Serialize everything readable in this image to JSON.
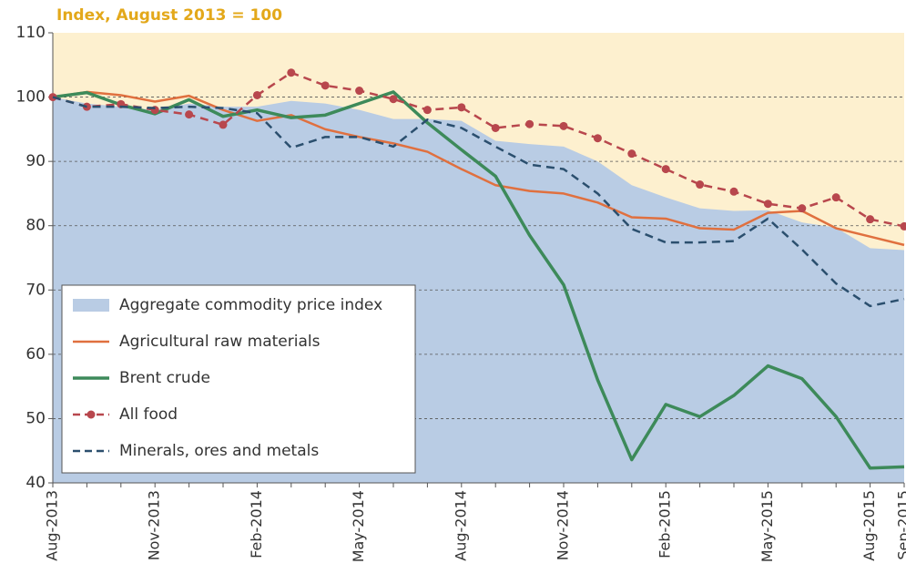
{
  "chart_data": {
    "type": "line",
    "title": "Index, August 2013 = 100",
    "categories": [
      "Aug-2013",
      null,
      null,
      "Nov-2013",
      null,
      null,
      "Feb-2014",
      null,
      null,
      "May-2014",
      null,
      null,
      "Aug-2014",
      null,
      null,
      "Nov-2014",
      null,
      null,
      "Feb-2015",
      null,
      null,
      "May-2015",
      null,
      null,
      "Aug-2015",
      "Sep-2015"
    ],
    "series": [
      {
        "name": "Aggregate commodity price index",
        "color": "#b9cce4",
        "kind": "area",
        "values": [
          100,
          99,
          98.5,
          98,
          99,
          98.5,
          98.5,
          99.4,
          99,
          98,
          96.6,
          96.6,
          96.3,
          93.2,
          92.7,
          92.3,
          90,
          86.3,
          84.4,
          82.7,
          82.3,
          82.4,
          80.5,
          79.7,
          76.5,
          76.2
        ]
      },
      {
        "name": "Agricultural raw materials",
        "color": "#e0703f",
        "kind": "line",
        "values": [
          100,
          100.8,
          100.3,
          99.3,
          100.2,
          98,
          96.3,
          97.2,
          95,
          93.8,
          92.8,
          91.5,
          88.8,
          86.3,
          85.4,
          85,
          83.6,
          81.3,
          81.1,
          79.6,
          79.4,
          82,
          82.3,
          79.6,
          78.3,
          77
        ]
      },
      {
        "name": "Brent crude",
        "color": "#3d8a5a",
        "kind": "line",
        "values": [
          100,
          100.7,
          98.8,
          97.4,
          99.6,
          97,
          98,
          96.8,
          97.2,
          99,
          100.8,
          96,
          91.8,
          87.7,
          78.5,
          70.8,
          56,
          43.6,
          52.2,
          50.3,
          53.6,
          58.2,
          56.2,
          50.3,
          42.3,
          42.5
        ]
      },
      {
        "name": "All food",
        "color": "#b8474d",
        "kind": "line",
        "dashed": true,
        "markers": true,
        "values": [
          100,
          98.5,
          98.9,
          98,
          97.3,
          95.7,
          100.3,
          103.8,
          101.8,
          101,
          99.7,
          98,
          98.4,
          95.2,
          95.8,
          95.5,
          93.6,
          91.2,
          88.8,
          86.4,
          85.3,
          83.4,
          82.7,
          84.4,
          81,
          79.9
        ]
      },
      {
        "name": "Minerals, ores and metals",
        "color": "#2b4f6e",
        "kind": "line",
        "dashed": true,
        "values": [
          100,
          98.5,
          98.5,
          98.3,
          98.5,
          98.3,
          97.5,
          92.1,
          93.8,
          93.8,
          92.3,
          96.5,
          95.2,
          92.3,
          89.5,
          88.8,
          85,
          79.5,
          77.4,
          77.4,
          77.6,
          81.1,
          76.3,
          71,
          67.5,
          68.6
        ]
      }
    ],
    "ylim": [
      40,
      110
    ],
    "yticks": [
      40,
      50,
      60,
      70,
      80,
      90,
      100,
      110
    ],
    "grid": true,
    "legend": "lower left"
  }
}
